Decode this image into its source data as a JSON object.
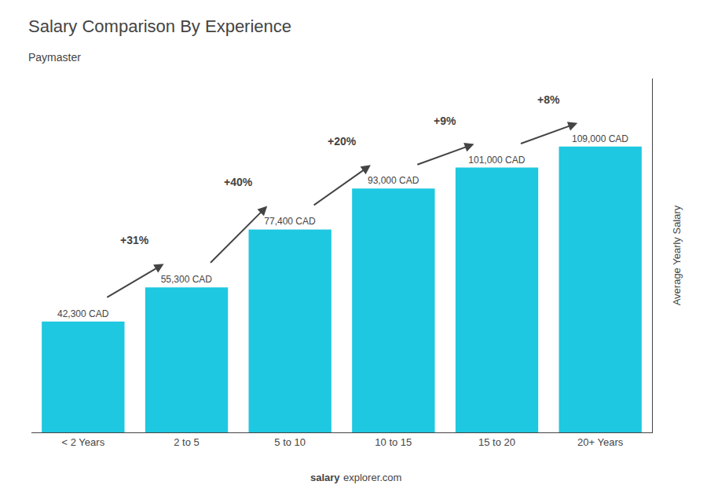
{
  "chart_data": {
    "type": "bar",
    "title": "Salary Comparison By Experience",
    "subtitle": "Paymaster",
    "categories": [
      "< 2 Years",
      "2 to 5",
      "5 to 10",
      "10 to 15",
      "15 to 20",
      "20+ Years"
    ],
    "values": [
      42300,
      55300,
      77400,
      93000,
      101000,
      109000
    ],
    "value_labels": [
      "42,300 CAD",
      "55,300 CAD",
      "77,400 CAD",
      "93,000 CAD",
      "101,000 CAD",
      "109,000 CAD"
    ],
    "data_labels": true,
    "color": "#1ec8e0",
    "annotations": [
      "+31%",
      "+40%",
      "+20%",
      "+9%",
      "+8%"
    ],
    "ylabel": "Average Yearly Salary",
    "ylim": [
      0,
      135000
    ],
    "yticks": [],
    "tick_labels": "x",
    "grid": false,
    "footer": [
      "salary",
      "explorer.com"
    ]
  }
}
